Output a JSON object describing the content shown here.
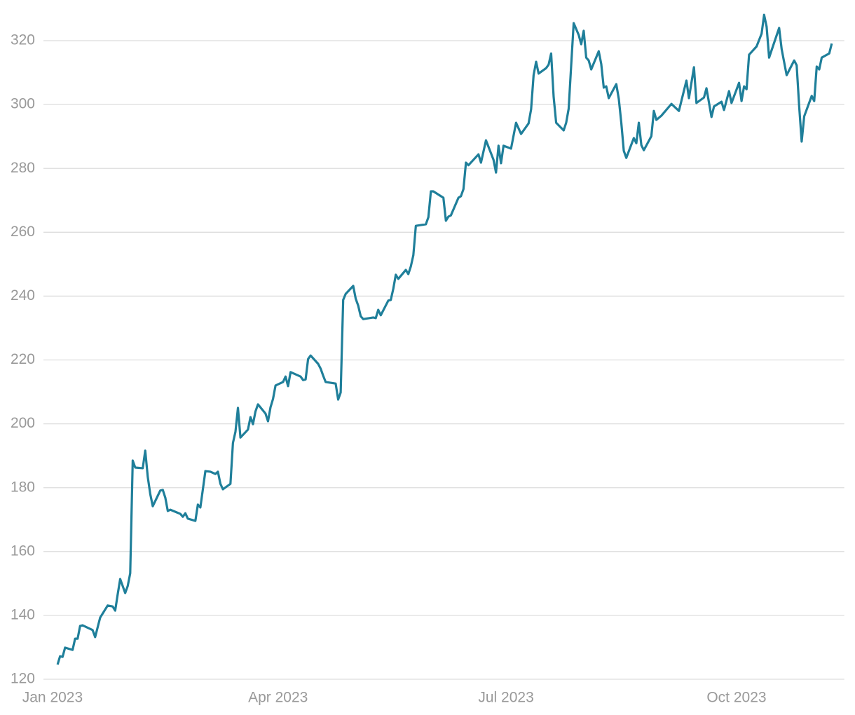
{
  "chart_data": {
    "type": "line",
    "x": [
      2,
      3,
      4,
      5,
      8,
      9,
      10,
      11,
      12,
      16,
      17,
      19,
      22,
      24,
      25,
      26,
      27,
      29,
      30,
      31,
      32,
      33,
      36,
      37,
      38,
      39,
      40,
      43,
      44,
      45,
      46,
      47,
      51,
      52,
      53,
      54,
      57,
      58,
      59,
      61,
      63,
      65,
      66,
      67,
      68,
      71,
      72,
      73,
      74,
      75,
      78,
      79,
      80,
      81,
      82,
      85,
      86,
      87,
      88,
      89,
      92,
      93,
      94,
      95,
      99,
      100,
      101,
      102,
      103,
      106,
      107,
      108,
      109,
      113,
      114,
      115,
      116,
      117,
      120,
      121,
      122,
      123,
      124,
      128,
      129,
      130,
      131,
      134,
      135,
      136,
      137,
      138,
      141,
      142,
      143,
      144,
      145,
      149,
      150,
      151,
      152,
      156,
      157,
      158,
      159,
      162,
      163,
      164,
      165,
      166,
      170,
      171,
      173,
      176,
      177,
      178,
      179,
      180,
      183,
      185,
      187,
      190,
      191,
      192,
      193,
      194,
      197,
      198,
      199,
      200,
      201,
      204,
      205,
      206,
      207,
      208,
      210,
      211,
      212,
      213,
      214,
      215,
      218,
      219,
      220,
      221,
      222,
      225,
      226,
      227,
      228,
      229,
      232,
      233,
      234,
      235,
      236,
      239,
      240,
      241,
      243,
      247,
      250,
      253,
      254,
      256,
      257,
      260,
      261,
      263,
      264,
      267,
      268,
      270,
      271,
      274,
      275,
      276,
      277,
      278,
      281,
      283,
      284,
      285,
      286,
      290,
      291,
      293,
      296,
      297,
      298,
      299,
      300,
      303,
      304,
      305,
      306,
      307,
      310,
      311
    ],
    "series": [
      {
        "color": "#1f7f9a",
        "values": [
          124.6,
          127.2,
          127.0,
          129.9,
          129.2,
          132.7,
          132.7,
          136.7,
          136.9,
          135.4,
          133.2,
          139.3,
          143.1,
          142.8,
          141.5,
          146.6,
          151.4,
          147.0,
          149.2,
          153.2,
          188.5,
          186.3,
          186.1,
          191.6,
          183.4,
          178.0,
          174.2,
          179.1,
          179.3,
          176.9,
          172.7,
          173.1,
          171.8,
          170.9,
          172.0,
          170.3,
          169.6,
          174.7,
          173.8,
          185.2,
          185.0,
          184.3,
          185.0,
          181.2,
          179.5,
          181.2,
          194.0,
          197.5,
          205.0,
          195.7,
          198.2,
          202.1,
          199.9,
          203.9,
          206.1,
          203.2,
          200.8,
          205.2,
          207.8,
          212.0,
          213.1,
          214.8,
          211.8,
          216.2,
          214.8,
          213.7,
          213.9,
          220.3,
          221.4,
          218.8,
          217.3,
          215.1,
          213.1,
          212.6,
          207.6,
          209.8,
          238.8,
          240.7,
          243.2,
          239.2,
          237.0,
          233.7,
          232.8,
          233.3,
          233.1,
          235.7,
          234.0,
          238.6,
          238.8,
          242.3,
          246.7,
          245.4,
          248.2,
          246.9,
          249.3,
          252.8,
          262.0,
          262.5,
          264.7,
          272.8,
          272.8,
          270.8,
          263.6,
          264.9,
          265.3,
          270.8,
          271.3,
          273.5,
          281.8,
          281.0,
          284.4,
          281.8,
          288.8,
          282.7,
          278.7,
          287.1,
          281.6,
          287.1,
          286.2,
          294.3,
          290.8,
          294.1,
          298.5,
          309.2,
          313.4,
          309.7,
          311.4,
          312.5,
          316.0,
          302.4,
          294.3,
          291.9,
          294.3,
          298.7,
          312.3,
          325.5,
          321.8,
          318.9,
          323.1,
          314.7,
          313.8,
          311.0,
          316.7,
          312.7,
          305.3,
          305.7,
          302.0,
          306.4,
          301.8,
          294.3,
          285.5,
          283.3,
          289.5,
          287.9,
          294.3,
          287.3,
          285.7,
          290.1,
          298.0,
          295.2,
          296.5,
          300.2,
          298.0,
          307.5,
          302.0,
          311.7,
          300.5,
          302.2,
          305.1,
          296.1,
          299.4,
          300.9,
          298.3,
          304.2,
          300.5,
          306.8,
          301.1,
          305.7,
          304.8,
          315.6,
          318.2,
          322.2,
          328.1,
          324.4,
          314.7,
          324.0,
          317.4,
          309.2,
          313.8,
          312.3,
          299.4,
          288.4,
          296.3,
          302.7,
          301.1,
          311.9,
          311.0,
          314.7,
          316.0,
          319.1
        ]
      }
    ],
    "xlim": [
      -13,
      316
    ],
    "xticks": [
      {
        "value": 0,
        "label": "Jan 2023"
      },
      {
        "value": 90,
        "label": "Apr 2023"
      },
      {
        "value": 181,
        "label": "Jul 2023"
      },
      {
        "value": 273,
        "label": "Oct 2023"
      }
    ],
    "ylim": [
      120,
      330
    ],
    "yticks": [
      120,
      140,
      160,
      180,
      200,
      220,
      240,
      260,
      280,
      300,
      320
    ],
    "grid": true
  }
}
